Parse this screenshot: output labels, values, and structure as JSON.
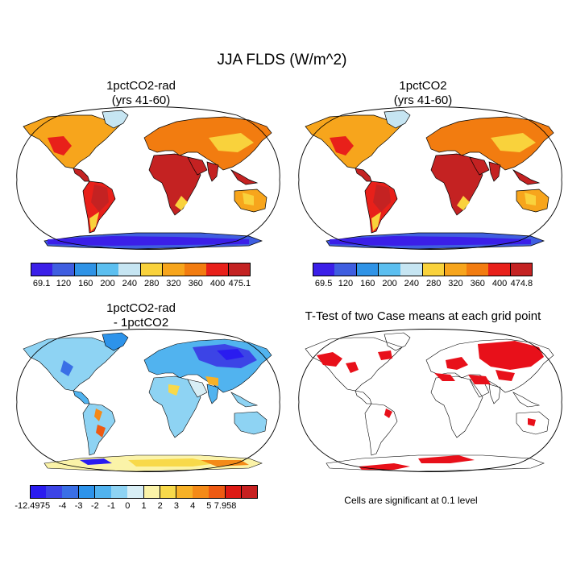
{
  "figure": {
    "title": "JJA FLDS (W/m^2)",
    "panels": [
      {
        "id": "p1",
        "title_line1": "1pctCO2-rad",
        "title_line2": "(yrs 41-60)",
        "variant": "absolute"
      },
      {
        "id": "p2",
        "title_line1": "1pctCO2",
        "title_line2": "(yrs 41-60)",
        "variant": "absolute"
      },
      {
        "id": "p3",
        "title_line1": "1pctCO2-rad",
        "title_line2": "- 1pctCO2",
        "variant": "difference"
      },
      {
        "id": "p4",
        "title_line1": "T-Test of two Case means at each grid point",
        "title_line2": "",
        "variant": "significance"
      }
    ],
    "significance_note": "Cells are significant at 0.1 level"
  },
  "colorbars": [
    {
      "id": "cb1",
      "colors": [
        "#3b1fe8",
        "#3f5ee0",
        "#2f93e6",
        "#5cbff0",
        "#c6e5f2",
        "#f9d23c",
        "#f7a51c",
        "#f27c10",
        "#e8201a",
        "#c42222"
      ],
      "labels": [
        "69.1",
        "120",
        "160",
        "200",
        "240",
        "280",
        "320",
        "360",
        "400",
        "475.1"
      ]
    },
    {
      "id": "cb2",
      "colors": [
        "#3b1fe8",
        "#3f5ee0",
        "#2f93e6",
        "#5cbff0",
        "#c6e5f2",
        "#f9d23c",
        "#f7a51c",
        "#f27c10",
        "#e8201a",
        "#c42222"
      ],
      "labels": [
        "69.5",
        "120",
        "160",
        "200",
        "240",
        "280",
        "320",
        "360",
        "400",
        "474.8"
      ]
    },
    {
      "id": "cb3",
      "colors": [
        "#2a1cf0",
        "#3c44e6",
        "#3a6fe6",
        "#2d93ea",
        "#51b3ef",
        "#8ed3f3",
        "#d8eef5",
        "#fbf3a8",
        "#f8d94a",
        "#f7b127",
        "#f48a18",
        "#ee5a12",
        "#dd1a14",
        "#c72020"
      ],
      "labels": [
        "-12.497",
        "-5",
        "-4",
        "-3",
        "-2",
        "-1",
        "0",
        "1",
        "2",
        "3",
        "4",
        "5",
        "7.958"
      ]
    }
  ]
}
